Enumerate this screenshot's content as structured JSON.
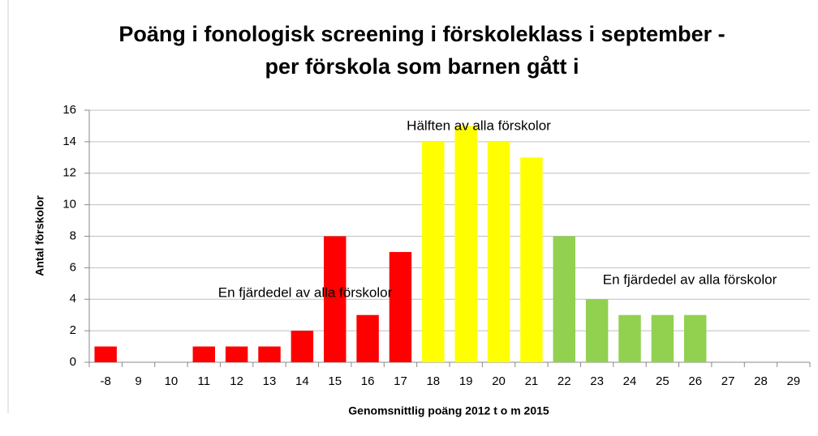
{
  "chart_data": {
    "type": "bar",
    "title": [
      "Poäng i fonologisk screening i förskoleklass i september -",
      "per förskola som barnen gått i"
    ],
    "x_label": "Genomsnittlig poäng 2012 t o m 2015",
    "y_label": "Antal förskolor",
    "categories": [
      "-8",
      "9",
      "10",
      "11",
      "12",
      "13",
      "14",
      "15",
      "16",
      "17",
      "18",
      "19",
      "20",
      "21",
      "22",
      "23",
      "24",
      "25",
      "26",
      "27",
      "28",
      "29"
    ],
    "values": [
      1,
      0,
      0,
      1,
      1,
      1,
      2,
      8,
      3,
      7,
      14,
      15,
      14,
      13,
      8,
      4,
      3,
      3,
      3,
      0,
      0,
      0
    ],
    "colors": [
      "#ff0000",
      "#ff0000",
      "#ff0000",
      "#ff0000",
      "#ff0000",
      "#ff0000",
      "#ff0000",
      "#ff0000",
      "#ff0000",
      "#ff0000",
      "#ffff00",
      "#ffff00",
      "#ffff00",
      "#ffff00",
      "#92d050",
      "#92d050",
      "#92d050",
      "#92d050",
      "#92d050",
      "#92d050",
      "#92d050",
      "#92d050"
    ],
    "ylim": [
      0,
      16
    ],
    "yticks": [
      0,
      2,
      4,
      6,
      8,
      10,
      12,
      14,
      16
    ],
    "grid": true,
    "annotations": [
      "Hälften av alla förskolor",
      "En fjärdedel av alla förskolor",
      "En fjärdedel av alla förskolor"
    ]
  }
}
